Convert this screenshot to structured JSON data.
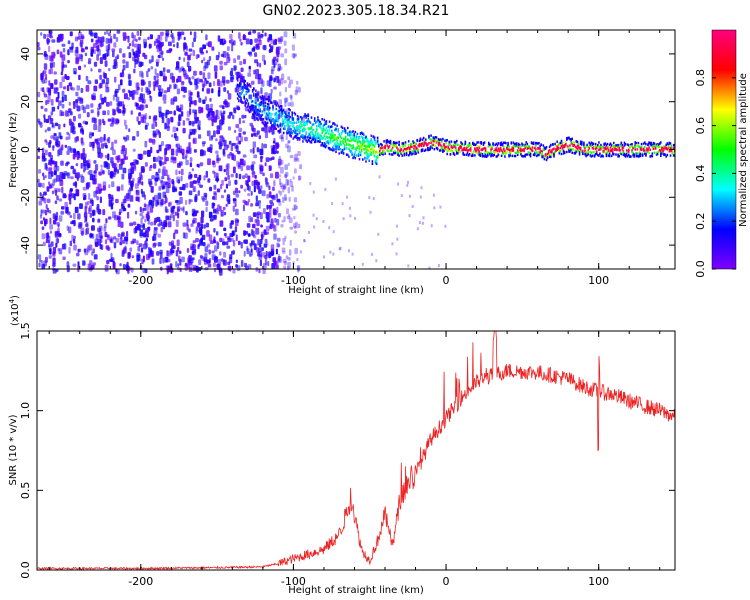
{
  "title": "GN02.2023.305.18.34.R21",
  "panels": [
    {
      "type": "heatmap",
      "xlabel": "Height of straight line (km)",
      "ylabel": "Frequency (Hz)",
      "xlim": [
        -268,
        150
      ],
      "ylim": [
        -50,
        50
      ],
      "xticks": [
        -200,
        -100,
        0,
        100
      ],
      "xtick_labels": [
        "-200",
        "-100",
        "0",
        "100"
      ],
      "yticks": [
        -40,
        -20,
        0,
        20,
        40
      ],
      "ytick_labels": [
        "-40",
        "-20",
        "0",
        "20",
        "40"
      ],
      "colorbar": {
        "label": "Normalized spectral amplitude",
        "range": [
          0,
          1
        ],
        "ticks": [
          0.0,
          0.2,
          0.4,
          0.6,
          0.8
        ],
        "tick_labels": [
          "0.0",
          "0.2",
          "0.4",
          "0.6",
          "0.8"
        ],
        "colormap": [
          "#ffffff",
          "#7f00ff",
          "#0000ff",
          "#00ffff",
          "#00ff00",
          "#ffff00",
          "#ff0000",
          "#ff0080"
        ]
      },
      "ridge": {
        "x": [
          -135,
          -120,
          -100,
          -85,
          -70,
          -60,
          -50,
          -45,
          -40,
          -30,
          -20,
          -10,
          0,
          20,
          40,
          60,
          65,
          70,
          80,
          90,
          100,
          120,
          150
        ],
        "y": [
          25,
          16,
          10,
          8,
          4,
          2,
          0,
          -1,
          1,
          0,
          1,
          3,
          1,
          0,
          0,
          0,
          -2,
          0,
          2,
          0,
          0,
          0,
          0
        ]
      }
    },
    {
      "type": "line",
      "xlabel": "Height of straight line (km)",
      "ylabel": "SNR (10 * v/v)",
      "yscale_label": "(x10^4)",
      "yscale_base": "(x10",
      "yscale_exp": "4",
      "xlim": [
        -268,
        150
      ],
      "ylim": [
        0,
        1.5
      ],
      "xticks": [
        -200,
        -100,
        0,
        100
      ],
      "xtick_labels": [
        "-200",
        "-100",
        "0",
        "100"
      ],
      "yticks": [
        0,
        0.5,
        1.0,
        1.5
      ],
      "ytick_labels": [
        "0.0",
        "0.5",
        "1.0",
        "1.5"
      ],
      "color": "#ee2222",
      "series": {
        "x": [
          -268,
          -200,
          -150,
          -120,
          -110,
          -100,
          -90,
          -80,
          -70,
          -62,
          -58,
          -55,
          -50,
          -45,
          -40,
          -35,
          -30,
          -25,
          -20,
          -10,
          0,
          10,
          20,
          30,
          40,
          60,
          80,
          90,
          100,
          110,
          120,
          130,
          140,
          150
        ],
        "y": [
          0.01,
          0.01,
          0.015,
          0.02,
          0.04,
          0.07,
          0.1,
          0.13,
          0.22,
          0.45,
          0.25,
          0.12,
          0.06,
          0.18,
          0.35,
          0.15,
          0.45,
          0.55,
          0.6,
          0.82,
          0.95,
          1.08,
          1.18,
          1.22,
          1.25,
          1.24,
          1.2,
          1.15,
          1.12,
          1.1,
          1.06,
          1.03,
          1.0,
          0.96
        ]
      }
    }
  ]
}
